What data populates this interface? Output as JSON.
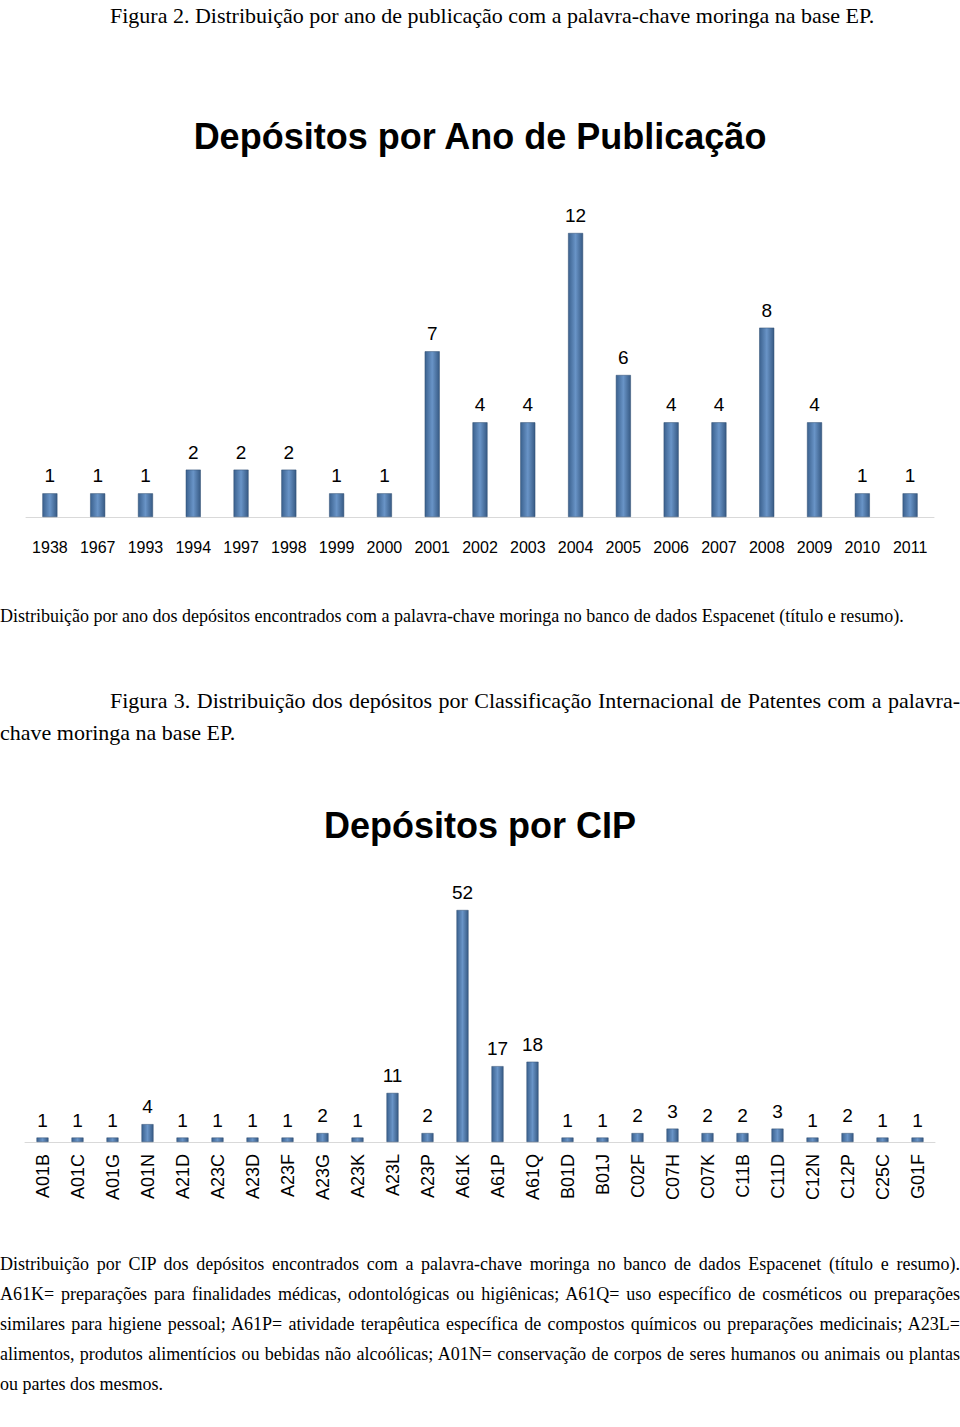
{
  "document": {
    "figure2_caption": "Figura 2. Distribuição por ano de publicação com a palavra-chave moringa na base EP.",
    "figure2_note": "Distribuição por ano dos depósitos encontrados com a palavra-chave moringa no banco de dados Espacenet (título e resumo).",
    "figure3_caption": "Figura 3. Distribuição dos depósitos por Classificação Internacional de Patentes com a palavra-chave moringa na base EP.",
    "figure3_note": "Distribuição por CIP dos depósitos encontrados com a palavra-chave moringa no banco de dados Espacenet (título e resumo). A61K= preparações para finalidades médicas, odontológicas ou higiênicas; A61Q= uso específico de cosméticos ou preparações similares para higiene pessoal; A61P= atividade terapêutica específica de compostos químicos ou preparações medicinais; A23L= alimentos, produtos alimentícios ou bebidas não alcoólicas; A01N= conservação de corpos de seres humanos ou animais ou plantas ou partes dos mesmos."
  },
  "chart_data": [
    {
      "type": "bar",
      "title": "Depósitos por Ano de Publicação",
      "categories": [
        "1938",
        "1967",
        "1993",
        "1994",
        "1997",
        "1998",
        "1999",
        "2000",
        "2001",
        "2002",
        "2003",
        "2004",
        "2005",
        "2006",
        "2007",
        "2008",
        "2009",
        "2010",
        "2011"
      ],
      "values": [
        1,
        1,
        1,
        2,
        2,
        2,
        1,
        1,
        7,
        4,
        4,
        12,
        6,
        4,
        4,
        8,
        4,
        1,
        1
      ],
      "color": "#4f81bd",
      "ylim": [
        0,
        12
      ],
      "data_labels": true,
      "tick_labels": "x",
      "grid": false
    },
    {
      "type": "bar",
      "title": "Depósitos por CIP",
      "categories": [
        "A01B",
        "A01C",
        "A01G",
        "A01N",
        "A21D",
        "A23C",
        "A23D",
        "A23F",
        "A23G",
        "A23K",
        "A23L",
        "A23P",
        "A61K",
        "A61P",
        "A61Q",
        "B01D",
        "B01J",
        "C02F",
        "C07H",
        "C07K",
        "C11B",
        "C11D",
        "C12N",
        "C12P",
        "C25C",
        "G01F"
      ],
      "values": [
        1,
        1,
        1,
        4,
        1,
        1,
        1,
        1,
        2,
        1,
        11,
        2,
        52,
        17,
        18,
        1,
        1,
        2,
        3,
        2,
        2,
        3,
        1,
        2,
        1,
        1
      ],
      "color": "#4f81bd",
      "ylim": [
        0,
        52
      ],
      "data_labels": true,
      "tick_labels": "x",
      "grid": false
    }
  ]
}
